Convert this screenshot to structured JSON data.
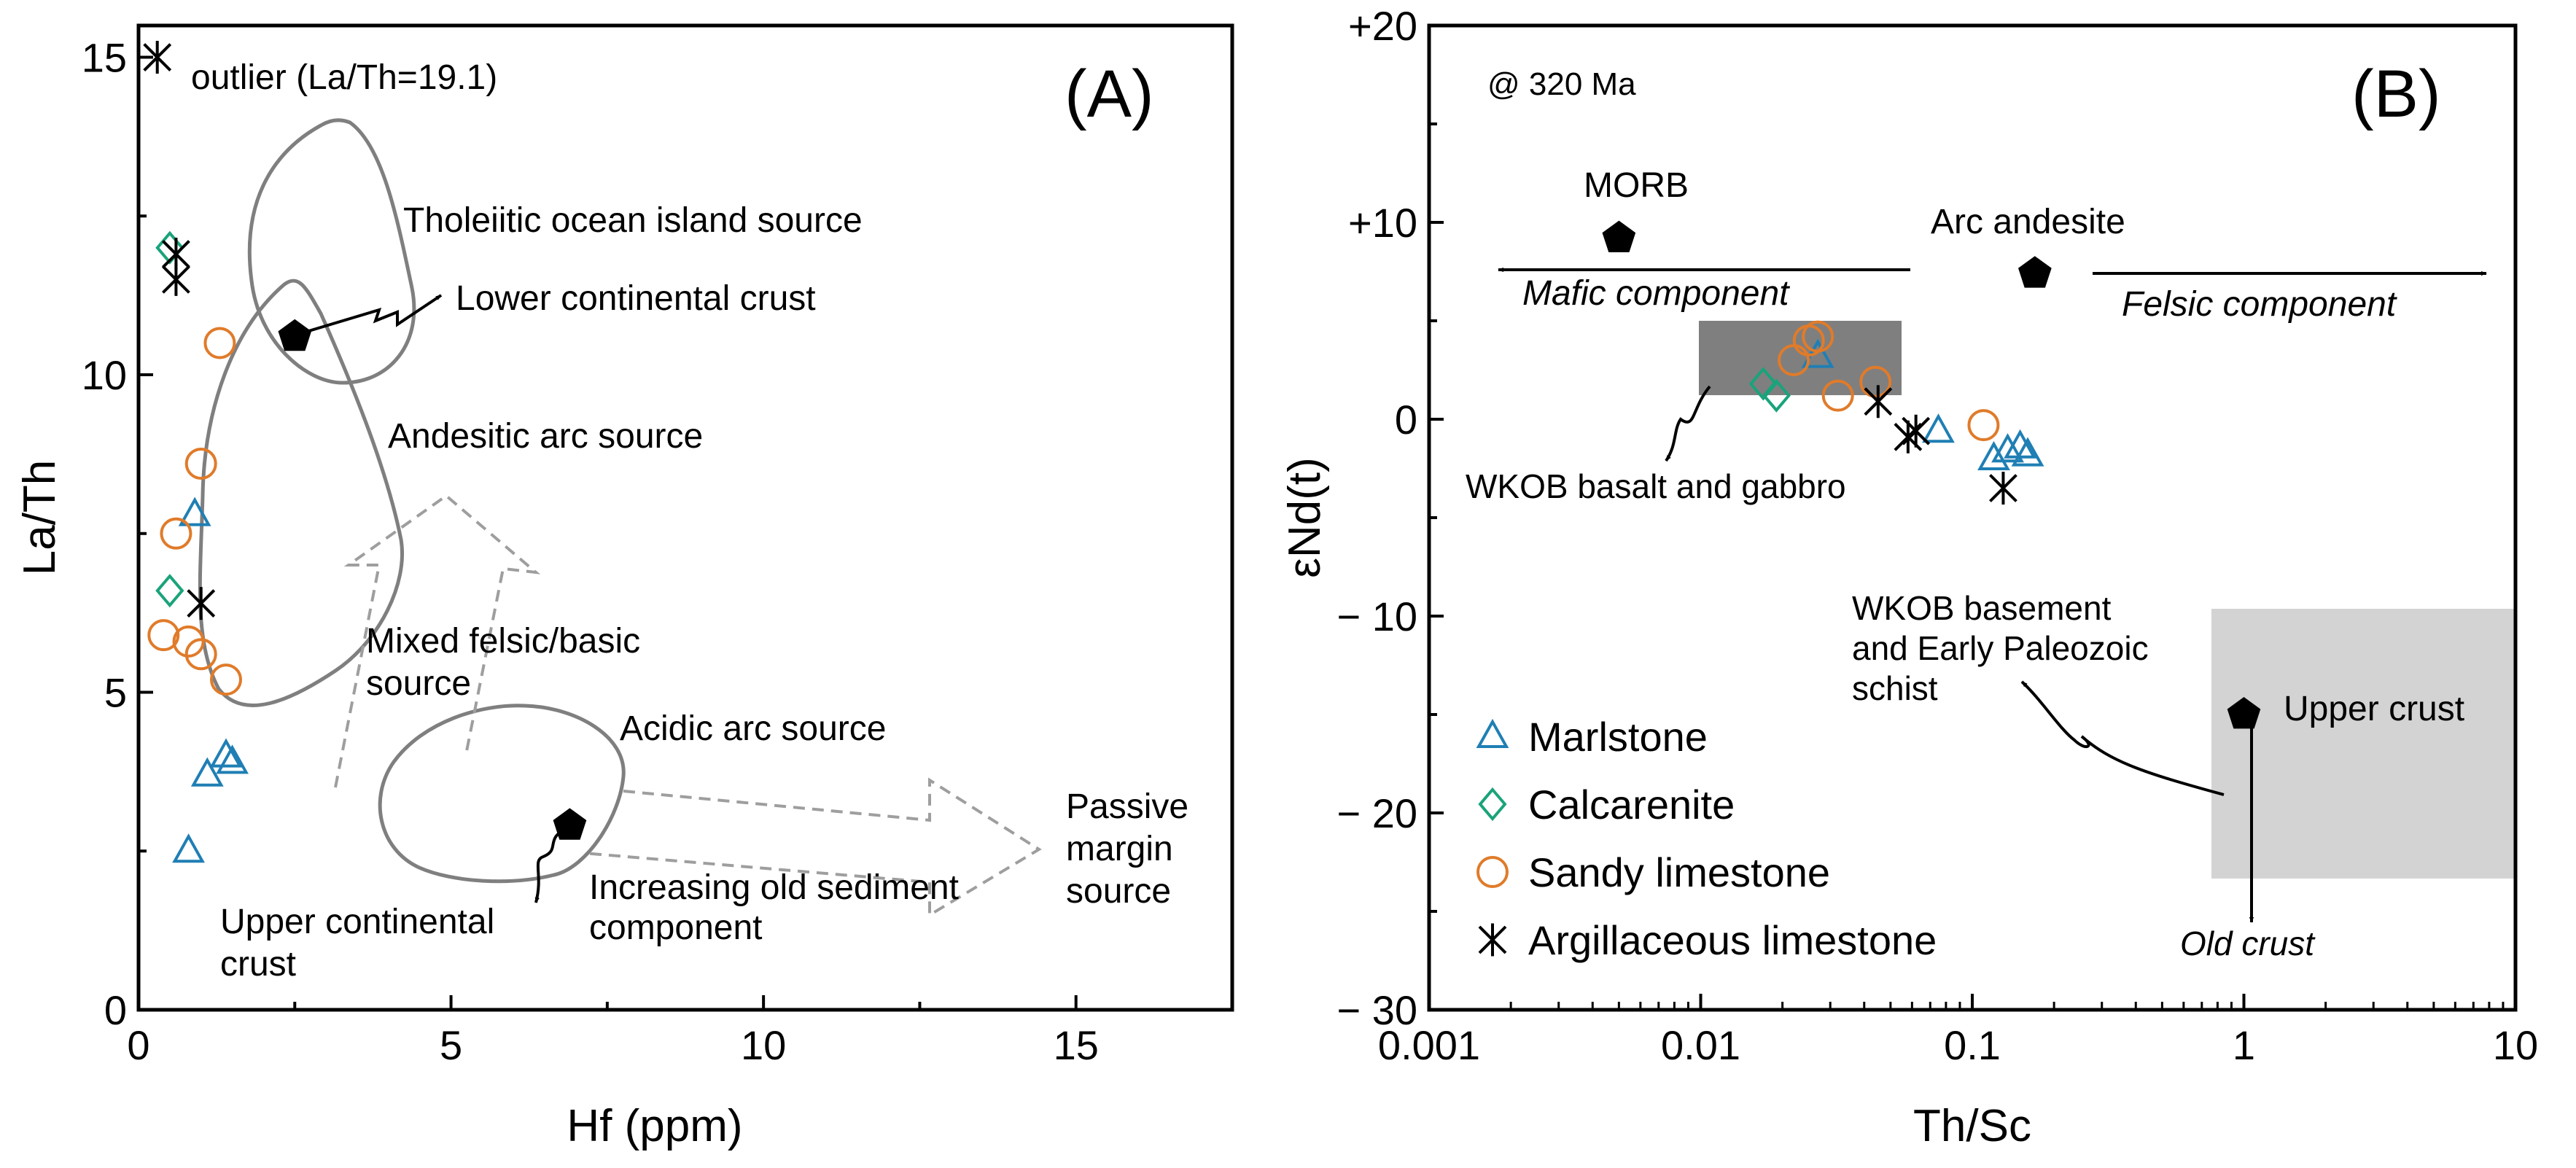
{
  "chart_data": [
    {
      "type": "scatter",
      "panel_label": "(A)",
      "xlabel": "Hf (ppm)",
      "ylabel": "La/Th",
      "xlim": [
        0,
        17.5
      ],
      "ylim": [
        0,
        15.5
      ],
      "x_ticks": [
        "0",
        "5",
        "10",
        "15"
      ],
      "y_ticks": [
        "0",
        "5",
        "10",
        "15"
      ],
      "outlier_note": "outlier (La/Th=19.1)",
      "series": [
        {
          "name": "Marlstone",
          "points": [
            [
              0.9,
              7.8
            ],
            [
              1.1,
              3.7
            ],
            [
              1.4,
              4.0
            ],
            [
              1.5,
              3.9
            ],
            [
              0.8,
              2.5
            ]
          ]
        },
        {
          "name": "Calcarenite",
          "points": [
            [
              0.5,
              12.0
            ],
            [
              0.5,
              6.6
            ]
          ]
        },
        {
          "name": "Sandy limestone",
          "points": [
            [
              1.3,
              10.5
            ],
            [
              1.0,
              8.6
            ],
            [
              0.6,
              7.5
            ],
            [
              0.4,
              5.9
            ],
            [
              0.8,
              5.8
            ],
            [
              1.0,
              5.6
            ],
            [
              1.4,
              5.2
            ]
          ]
        },
        {
          "name": "Argillaceous limestone",
          "points": [
            [
              0.6,
              11.9
            ],
            [
              0.6,
              11.5
            ],
            [
              1.0,
              6.4
            ],
            [
              0.3,
              15.0
            ]
          ]
        }
      ],
      "references": [
        {
          "label": "Lower continental crust",
          "x": 2.5,
          "y": 10.6
        },
        {
          "label": "Upper continental crust",
          "x": 6.9,
          "y": 2.9
        }
      ],
      "field_labels": {
        "toi": "Tholeiitic ocean island source",
        "andesitic": "Andesitic arc source",
        "mixed": "Mixed felsic/basic source",
        "acidic": "Acidic arc source",
        "passive": "Passive margin source",
        "old_sediment": "Increasing old sediment component"
      }
    },
    {
      "type": "scatter",
      "panel_label": "(B)",
      "xlabel": "Th/Sc",
      "ylabel": "εNd(t)",
      "x_scale": "log",
      "xlim": [
        0.001,
        10
      ],
      "ylim": [
        -30,
        20
      ],
      "x_ticks": [
        "0.001",
        "0.01",
        "0.1",
        "1",
        "10"
      ],
      "y_ticks": [
        "+20",
        "+10",
        "0",
        "− 10",
        "− 20",
        "− 30"
      ],
      "age_note": "@ 320 Ma",
      "series": [
        {
          "name": "Marlstone",
          "points": [
            [
              0.027,
              3.2
            ],
            [
              0.075,
              -0.6
            ],
            [
              0.12,
              -2.0
            ],
            [
              0.135,
              -1.6
            ],
            [
              0.15,
              -1.4
            ],
            [
              0.16,
              -1.8
            ]
          ]
        },
        {
          "name": "Calcarenite",
          "points": [
            [
              0.017,
              1.8
            ],
            [
              0.019,
              1.2
            ]
          ]
        },
        {
          "name": "Sandy limestone",
          "points": [
            [
              0.022,
              3.0
            ],
            [
              0.025,
              4.0
            ],
            [
              0.027,
              4.2
            ],
            [
              0.032,
              1.2
            ],
            [
              0.044,
              1.9
            ],
            [
              0.11,
              -0.3
            ]
          ]
        },
        {
          "name": "Argillaceous limestone",
          "points": [
            [
              0.045,
              0.9
            ],
            [
              0.058,
              -0.9
            ],
            [
              0.062,
              -0.6
            ],
            [
              0.13,
              -3.5
            ]
          ]
        }
      ],
      "references": [
        {
          "label": "MORB",
          "x": 0.005,
          "y": 9.2
        },
        {
          "label": "Arc andesite",
          "x": 0.17,
          "y": 7.4
        },
        {
          "label": "Upper crust",
          "x": 1.0,
          "y": -15.0
        }
      ],
      "annotations": {
        "mafic": "Mafic component",
        "felsic": "Felsic component",
        "wkob_basalt": "WKOB basalt and gabbro",
        "basement_l1": "WKOB basement",
        "basement_l2": "and Early Paleozoic",
        "basement_l3": "schist",
        "old_crust": "Old crust"
      }
    }
  ],
  "legend": [
    "Marlstone",
    "Calcarenite",
    "Sandy limestone",
    "Argillaceous limestone"
  ],
  "colors": {
    "marlstone": "#1f7fb4",
    "calcarenite": "#1aa37a",
    "sandy": "#e07b2a",
    "argillaceous": "#000000"
  }
}
